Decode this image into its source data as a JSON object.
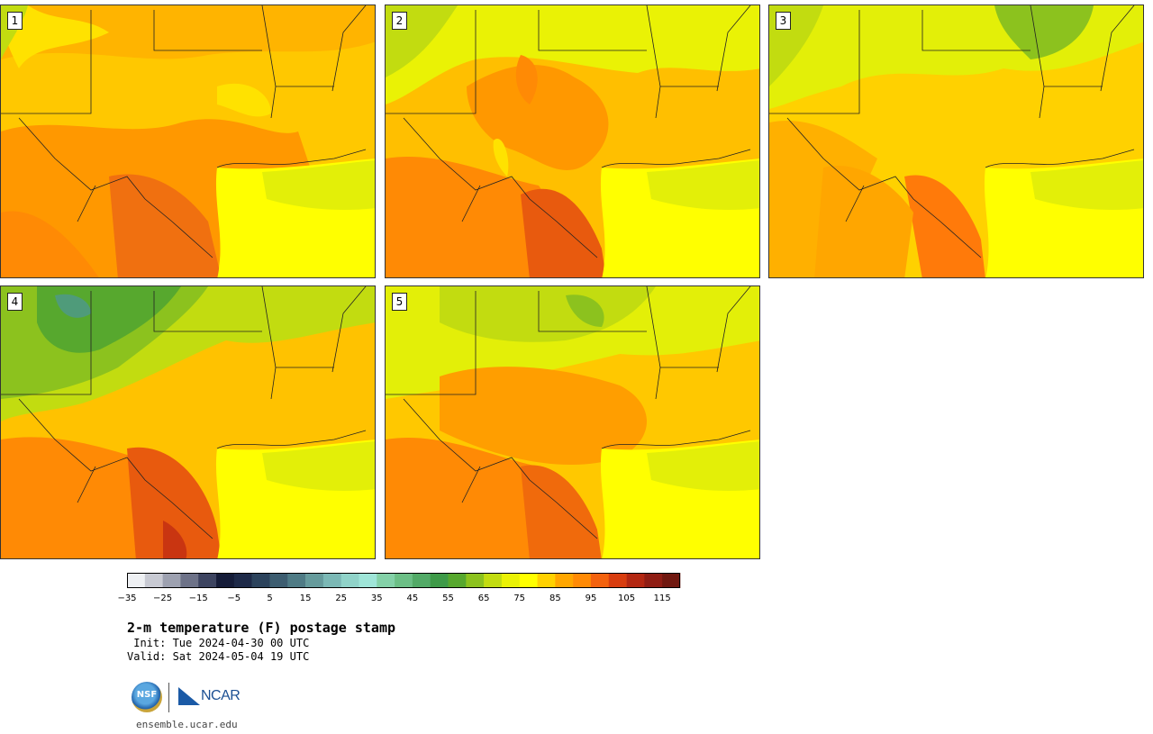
{
  "figure": {
    "title": "2-m temperature (F) postage stamp",
    "init": " Init: Tue 2024-04-30 00 UTC",
    "valid": "Valid: Sat 2024-05-04 19 UTC",
    "site": "ensemble.ucar.edu",
    "logos": {
      "nsf": "NSF",
      "ncar": "NCAR"
    }
  },
  "members": [
    {
      "label": "1"
    },
    {
      "label": "2"
    },
    {
      "label": "3"
    },
    {
      "label": "4"
    },
    {
      "label": "5"
    }
  ],
  "colorbar": {
    "tick_labels": [
      "−35",
      "−25",
      "−15",
      "−5",
      "5",
      "15",
      "25",
      "35",
      "45",
      "55",
      "65",
      "75",
      "85",
      "95",
      "105",
      "115"
    ],
    "colors": [
      "#eef0f3",
      "#c8cad3",
      "#9da1b0",
      "#6d7288",
      "#3d4460",
      "#151c38",
      "#1e2a48",
      "#2c435c",
      "#3d5d70",
      "#4f7b85",
      "#669b9c",
      "#7bb8b5",
      "#90d3c9",
      "#9fe5d8",
      "#84d1a8",
      "#6cbf86",
      "#52aa67",
      "#3e9a48",
      "#57a82e",
      "#8cc21e",
      "#c2dc10",
      "#eaf205",
      "#ffff00",
      "#ffd100",
      "#ffa600",
      "#ff8a05",
      "#f3620e",
      "#d83d0f",
      "#b32712",
      "#8f1d14",
      "#701810"
    ]
  }
}
